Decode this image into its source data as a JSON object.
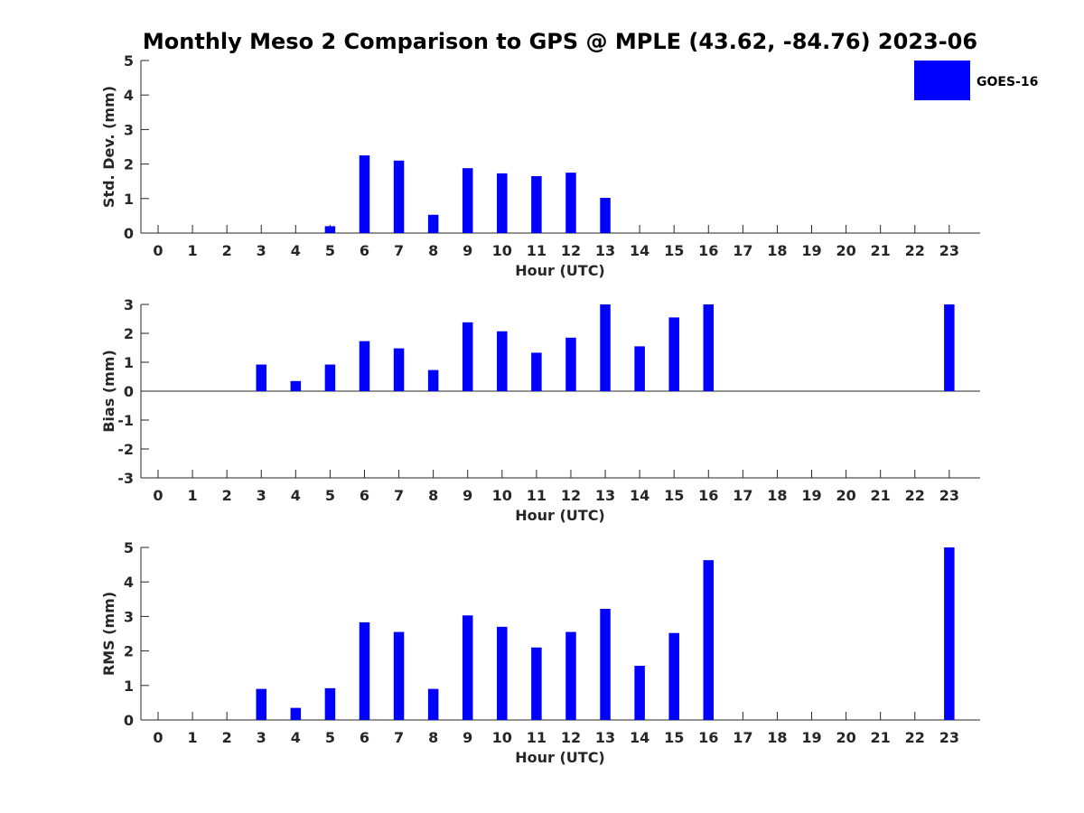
{
  "title": "Monthly Meso 2 Comparison to GPS @ MPLE (43.62, -84.76) 2023-06",
  "legend": {
    "label": "GOES-16",
    "color": "#0000ff"
  },
  "bar_color": "#0000ff",
  "chart_data": [
    {
      "type": "bar",
      "ylabel": "Std. Dev. (mm)",
      "xlabel": "Hour (UTC)",
      "ylim": [
        0,
        5
      ],
      "yticks": [
        0,
        1,
        2,
        3,
        4,
        5
      ],
      "categories": [
        "0",
        "1",
        "2",
        "3",
        "4",
        "5",
        "6",
        "7",
        "8",
        "9",
        "10",
        "11",
        "12",
        "13",
        "14",
        "15",
        "16",
        "17",
        "18",
        "19",
        "20",
        "21",
        "22",
        "23"
      ],
      "series": [
        {
          "name": "GOES-16",
          "values": [
            null,
            null,
            null,
            null,
            null,
            0.2,
            2.25,
            2.1,
            0.53,
            1.88,
            1.73,
            1.65,
            1.75,
            1.02,
            null,
            null,
            null,
            null,
            null,
            null,
            null,
            null,
            null,
            null
          ]
        }
      ]
    },
    {
      "type": "bar",
      "ylabel": "Bias (mm)",
      "xlabel": "Hour (UTC)",
      "ylim": [
        -3,
        3
      ],
      "yticks": [
        -3,
        -2,
        -1,
        0,
        1,
        2,
        3
      ],
      "categories": [
        "0",
        "1",
        "2",
        "3",
        "4",
        "5",
        "6",
        "7",
        "8",
        "9",
        "10",
        "11",
        "12",
        "13",
        "14",
        "15",
        "16",
        "17",
        "18",
        "19",
        "20",
        "21",
        "22",
        "23"
      ],
      "series": [
        {
          "name": "GOES-16",
          "values": [
            null,
            null,
            null,
            0.92,
            0.35,
            0.92,
            1.73,
            1.48,
            0.73,
            2.38,
            2.07,
            1.33,
            1.85,
            3.0,
            1.55,
            2.55,
            3.0,
            null,
            null,
            null,
            null,
            null,
            null,
            3.0
          ]
        }
      ]
    },
    {
      "type": "bar",
      "ylabel": "RMS (mm)",
      "xlabel": "Hour (UTC)",
      "ylim": [
        0,
        5
      ],
      "yticks": [
        0,
        1,
        2,
        3,
        4,
        5
      ],
      "categories": [
        "0",
        "1",
        "2",
        "3",
        "4",
        "5",
        "6",
        "7",
        "8",
        "9",
        "10",
        "11",
        "12",
        "13",
        "14",
        "15",
        "16",
        "17",
        "18",
        "19",
        "20",
        "21",
        "22",
        "23"
      ],
      "series": [
        {
          "name": "GOES-16",
          "values": [
            null,
            null,
            null,
            0.9,
            0.35,
            0.92,
            2.83,
            2.55,
            0.9,
            3.03,
            2.7,
            2.1,
            2.55,
            3.22,
            1.57,
            2.52,
            4.63,
            null,
            null,
            null,
            null,
            null,
            null,
            5.0
          ]
        }
      ]
    }
  ]
}
